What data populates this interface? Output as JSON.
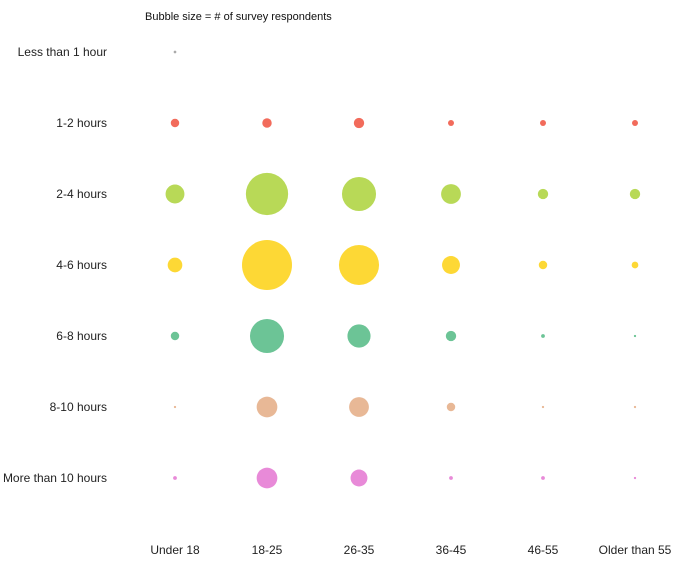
{
  "chart_data": {
    "type": "scatter",
    "subtype": "bubble-matrix",
    "title": "",
    "annotation": "Bubble size = # of survey respondents",
    "xlabel": "",
    "ylabel": "",
    "grid": false,
    "legend": "none",
    "x_categories": [
      "Under 18",
      "18-25",
      "26-35",
      "36-45",
      "46-55",
      "Older than 55"
    ],
    "y_categories": [
      "Less than 1 hour",
      "1-2 hours",
      "2-4 hours",
      "4-6 hours",
      "6-8 hours",
      "8-10 hours",
      "More than 10 hours"
    ],
    "row_colors": [
      "#aaaaaa",
      "#f26b5b",
      "#b8d957",
      "#fdd835",
      "#6cc496",
      "#e8b896",
      "#e88ad8"
    ],
    "values": [
      [
        0.4,
        0,
        0,
        0,
        0,
        0
      ],
      [
        4,
        5,
        6,
        2,
        2,
        2
      ],
      [
        20,
        100,
        65,
        22,
        6,
        6
      ],
      [
        12,
        140,
        90,
        18,
        4,
        2.5
      ],
      [
        4,
        65,
        30,
        6,
        0.8,
        0.3
      ],
      [
        0.3,
        24,
        22,
        4,
        0.3,
        0.3
      ],
      [
        0.8,
        24,
        16,
        0.8,
        0.8,
        0.3
      ]
    ]
  }
}
